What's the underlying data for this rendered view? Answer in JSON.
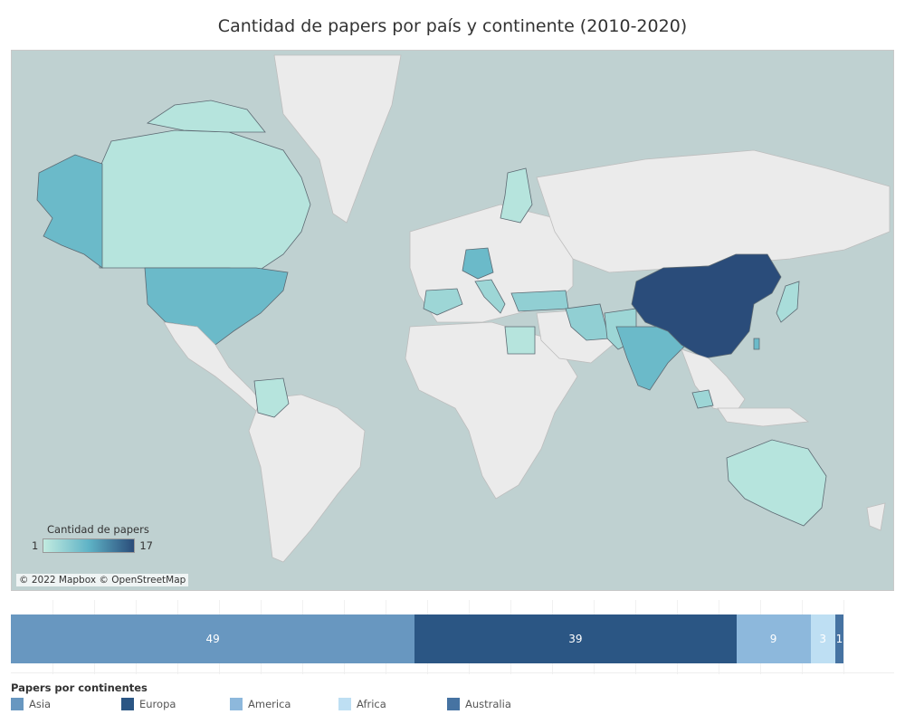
{
  "title": "Cantidad de papers por país y continente (2010-2020)",
  "map": {
    "attribution": "© 2022 Mapbox © OpenStreetMap",
    "legend": {
      "title": "Cantidad de papers",
      "min": "1",
      "max": "17"
    },
    "colors": {
      "ocean": "#bfd1d1",
      "land": "#ebebeb",
      "low": "#c2ebe0",
      "mid": "#5fb3c6",
      "high": "#2a4c7a"
    },
    "highlighted_countries": [
      {
        "name": "China",
        "level": 17
      },
      {
        "name": "India",
        "level": 8
      },
      {
        "name": "United States",
        "level": 8
      },
      {
        "name": "Alaska",
        "level": 8
      },
      {
        "name": "Germany",
        "level": 8
      },
      {
        "name": "Canada",
        "level": 2
      },
      {
        "name": "Australia",
        "level": 2
      },
      {
        "name": "Colombia",
        "level": 2
      },
      {
        "name": "Iran",
        "level": 5
      },
      {
        "name": "Pakistan",
        "level": 4
      },
      {
        "name": "Turkey",
        "level": 5
      },
      {
        "name": "Italy",
        "level": 4
      },
      {
        "name": "Spain",
        "level": 4
      },
      {
        "name": "Egypt",
        "level": 2
      },
      {
        "name": "Finland",
        "level": 2
      },
      {
        "name": "Malaysia",
        "level": 4
      },
      {
        "name": "Japan",
        "level": 3
      },
      {
        "name": "Taiwan",
        "level": 8
      },
      {
        "name": "Greenland",
        "level": 0
      }
    ]
  },
  "chart_data": {
    "type": "bar",
    "title": "Papers por continentes",
    "categories": [
      "Asia",
      "Europa",
      "America",
      "Africa",
      "Australia"
    ],
    "values": [
      49,
      39,
      9,
      3,
      1
    ],
    "orientation": "horizontal-stacked",
    "colors": [
      "#6897c0",
      "#2b5684",
      "#8db8dc",
      "#bedff3",
      "#4673a2"
    ],
    "legend_position": "bottom"
  }
}
